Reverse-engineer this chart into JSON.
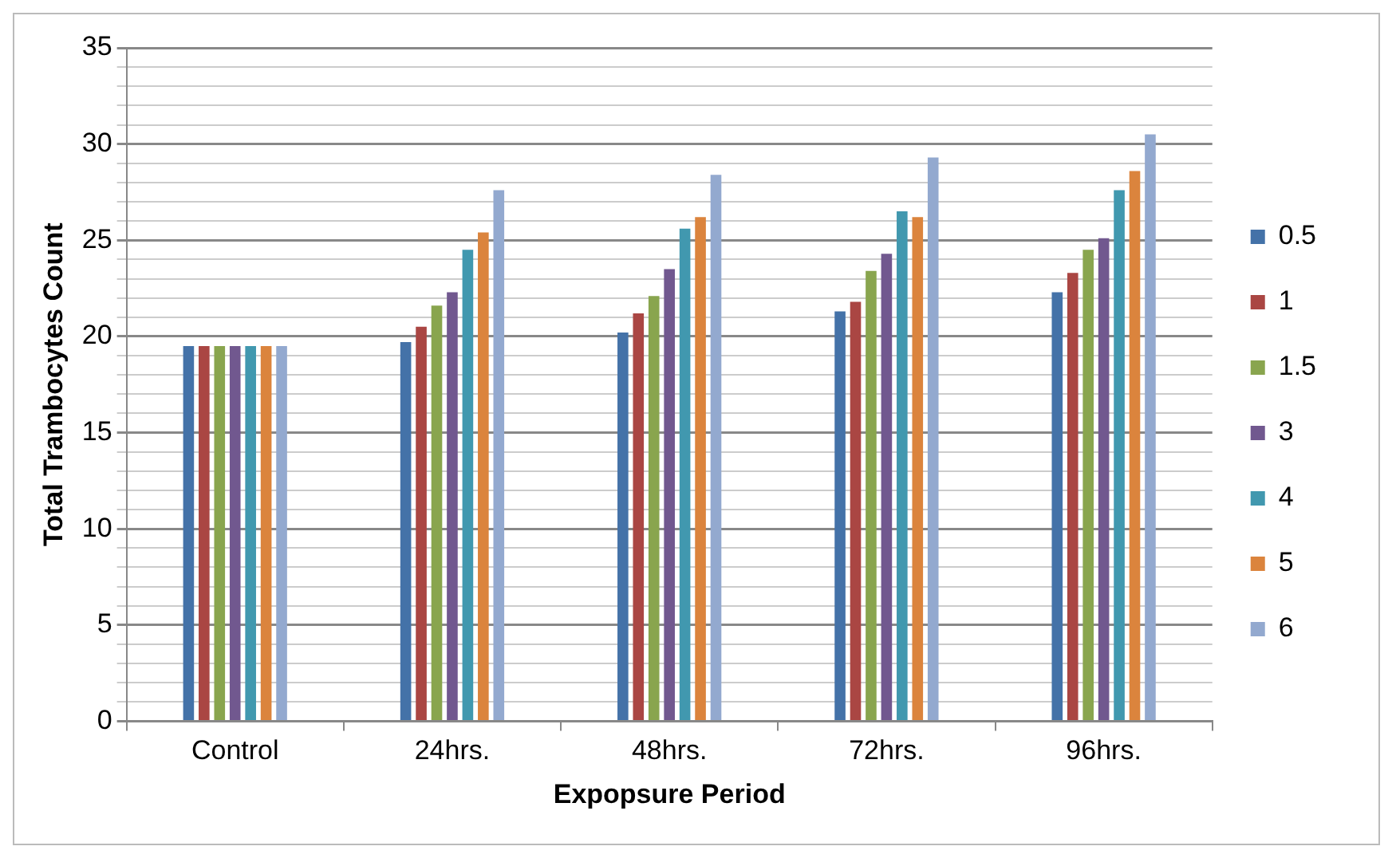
{
  "chart_data": {
    "type": "bar",
    "xlabel": "Expopsure Period",
    "ylabel": "Total Trambocytes Count",
    "categories": [
      "Control",
      "24hrs.",
      "48hrs.",
      "72hrs.",
      "96hrs."
    ],
    "series": [
      {
        "name": "0.5",
        "color": "#4472a8",
        "values": [
          19.5,
          19.7,
          20.2,
          21.3,
          22.3
        ]
      },
      {
        "name": "1",
        "color": "#aa4643",
        "values": [
          19.5,
          20.5,
          21.2,
          21.8,
          23.3
        ]
      },
      {
        "name": "1.5",
        "color": "#89a54e",
        "values": [
          19.5,
          21.6,
          22.1,
          23.4,
          24.5
        ]
      },
      {
        "name": "3",
        "color": "#71588f",
        "values": [
          19.5,
          22.3,
          23.5,
          24.3,
          25.1
        ]
      },
      {
        "name": "4",
        "color": "#4198af",
        "values": [
          19.5,
          24.5,
          25.6,
          26.5,
          27.6
        ]
      },
      {
        "name": "5",
        "color": "#db843d",
        "values": [
          19.5,
          25.4,
          26.2,
          26.2,
          28.6
        ]
      },
      {
        "name": "6",
        "color": "#93a9cf",
        "values": [
          19.5,
          27.6,
          28.4,
          29.3,
          30.5
        ]
      }
    ],
    "ylim": [
      0,
      35
    ],
    "yticks": [
      0,
      {
        "value": 1,
        "label": null
      },
      {
        "value": 2,
        "label": null
      },
      {
        "value": 3,
        "label": null
      },
      {
        "value": 4,
        "label": null
      },
      5,
      {
        "value": 6,
        "label": null
      },
      {
        "value": 7,
        "label": null
      },
      {
        "value": 8,
        "label": null
      },
      {
        "value": 9,
        "label": null
      },
      10,
      {
        "value": 11,
        "label": null
      },
      {
        "value": 12,
        "label": null
      },
      {
        "value": 13,
        "label": null
      },
      {
        "value": 14,
        "label": null
      },
      15,
      {
        "value": 16,
        "label": null
      },
      {
        "value": 17,
        "label": null
      },
      {
        "value": 18,
        "label": null
      },
      {
        "value": 19,
        "label": null
      },
      20,
      {
        "value": 21,
        "label": null
      },
      {
        "value": 22,
        "label": null
      },
      {
        "value": 23,
        "label": null
      },
      {
        "value": 24,
        "label": null
      },
      25,
      {
        "value": 26,
        "label": null
      },
      {
        "value": 27,
        "label": null
      },
      {
        "value": 28,
        "label": null
      },
      {
        "value": 29,
        "label": null
      },
      30,
      {
        "value": 31,
        "label": null
      },
      {
        "value": 32,
        "label": null
      },
      {
        "value": 33,
        "label": null
      },
      {
        "value": 34,
        "label": null
      },
      35
    ],
    "grid": true,
    "legend": "right"
  }
}
